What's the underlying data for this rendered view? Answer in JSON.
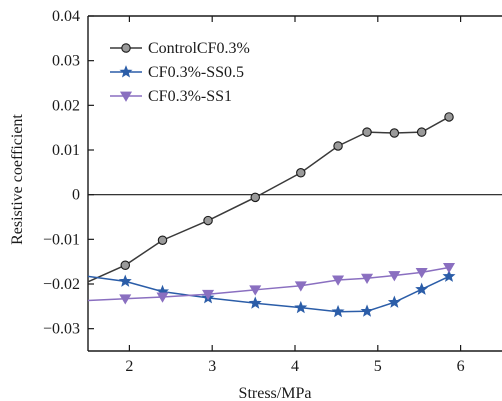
{
  "chart_data": {
    "type": "line",
    "xlabel": "Stress/MPa",
    "ylabel": "Resistive coefficient",
    "xlim": [
      1.5,
      6.5
    ],
    "ylim": [
      -0.035,
      0.04
    ],
    "xticks": [
      2,
      3,
      4,
      5,
      6
    ],
    "xtick_labels": [
      "2",
      "3",
      "4",
      "5",
      "6"
    ],
    "yticks": [
      -0.03,
      -0.02,
      -0.01,
      0,
      0.01,
      0.02,
      0.03,
      0.04
    ],
    "ytick_labels": [
      "−0.03",
      "−0.02",
      "−0.01",
      "0",
      "0.01",
      "0.02",
      "0.03",
      "0.04"
    ],
    "zero_line": true,
    "grid": false,
    "legend_position": "top-left",
    "series": [
      {
        "name": "ControlCF0.3%",
        "color": "#3a3a3a",
        "marker": "circle",
        "x": [
          1.5,
          1.95,
          2.4,
          2.95,
          3.52,
          4.07,
          4.52,
          4.87,
          5.2,
          5.53,
          5.86
        ],
        "y": [
          -0.0195,
          -0.0158,
          -0.0102,
          -0.0058,
          -0.0006,
          0.0049,
          0.0109,
          0.014,
          0.0138,
          0.014,
          0.0174
        ]
      },
      {
        "name": "CF0.3%-SS0.5",
        "color": "#2b5da8",
        "marker": "star",
        "x": [
          1.5,
          1.95,
          2.4,
          2.95,
          3.52,
          4.07,
          4.52,
          4.87,
          5.2,
          5.53,
          5.86
        ],
        "y": [
          -0.0183,
          -0.0194,
          -0.0217,
          -0.0231,
          -0.0243,
          -0.0253,
          -0.0262,
          -0.0261,
          -0.0241,
          -0.0212,
          -0.0183
        ]
      },
      {
        "name": "CF0.3%-SS1",
        "color": "#8a6fc0",
        "marker": "triangle-down",
        "x": [
          1.5,
          1.95,
          2.4,
          2.95,
          3.52,
          4.07,
          4.52,
          4.87,
          5.2,
          5.53,
          5.86
        ],
        "y": [
          -0.0237,
          -0.0233,
          -0.0229,
          -0.0223,
          -0.0213,
          -0.0204,
          -0.0191,
          -0.0187,
          -0.0181,
          -0.0174,
          -0.0163
        ]
      }
    ]
  }
}
